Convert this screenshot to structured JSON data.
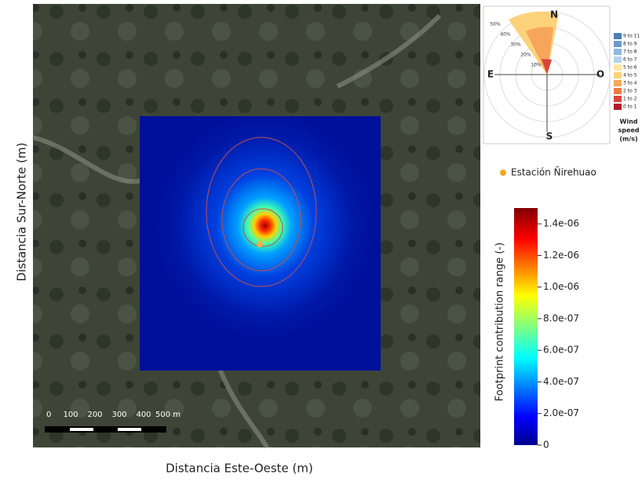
{
  "map": {
    "y_axis_label": "Distancia Sur-Norte (m)",
    "x_axis_label": "Distancia Este-Oeste (m)",
    "scale_bar": [
      "0",
      "100",
      "200",
      "300",
      "400",
      "500 m"
    ],
    "station_label": "Estación Ñirehuao"
  },
  "wind_rose": {
    "directions": [
      "N",
      "E",
      "O",
      "S"
    ],
    "rings": [
      "10%",
      "20%",
      "30%",
      "40%",
      "50%"
    ],
    "speed_bins": [
      "9 to 11",
      "8 to 9",
      "7 to 8",
      "6 to 7",
      "5 to 6",
      "4 to 5",
      "3 to 4",
      "2 to 3",
      "1 to 2",
      "0 to 1"
    ],
    "speed_title": [
      "Wind",
      "speed",
      "(m/s)"
    ]
  },
  "colorbar": {
    "label": "Footprint contribution range (-)",
    "lim": [
      0,
      1.5e-06
    ],
    "ticks": [
      0,
      {
        "value": 2e-07,
        "label": "2.0e-07"
      },
      {
        "value": 4e-07,
        "label": "4.0e-07"
      },
      {
        "value": 6e-07,
        "label": "6.0e-07"
      },
      {
        "value": 8e-07,
        "label": "8.0e-07"
      },
      {
        "value": 1e-06,
        "label": "1.0e-06"
      },
      {
        "value": 1.2e-06,
        "label": "1.2e-06"
      },
      {
        "value": 1.4e-06,
        "label": "1.4e-06"
      }
    ]
  }
}
